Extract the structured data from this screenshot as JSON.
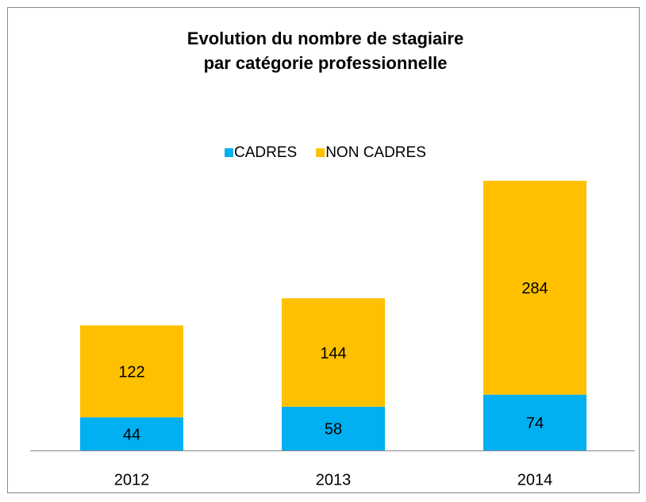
{
  "chart_data": {
    "type": "stacked_bar",
    "title": [
      "Evolution du nombre de stagiaire",
      "par catégorie professionnelle"
    ],
    "categories": [
      "2012",
      "2013",
      "2014"
    ],
    "series": [
      {
        "name": "CADRES",
        "color": "#00b0f0",
        "values": [
          44,
          58,
          74
        ]
      },
      {
        "name": "NON CADRES",
        "color": "#ffc000",
        "values": [
          122,
          144,
          284
        ]
      }
    ],
    "legend": "top"
  }
}
